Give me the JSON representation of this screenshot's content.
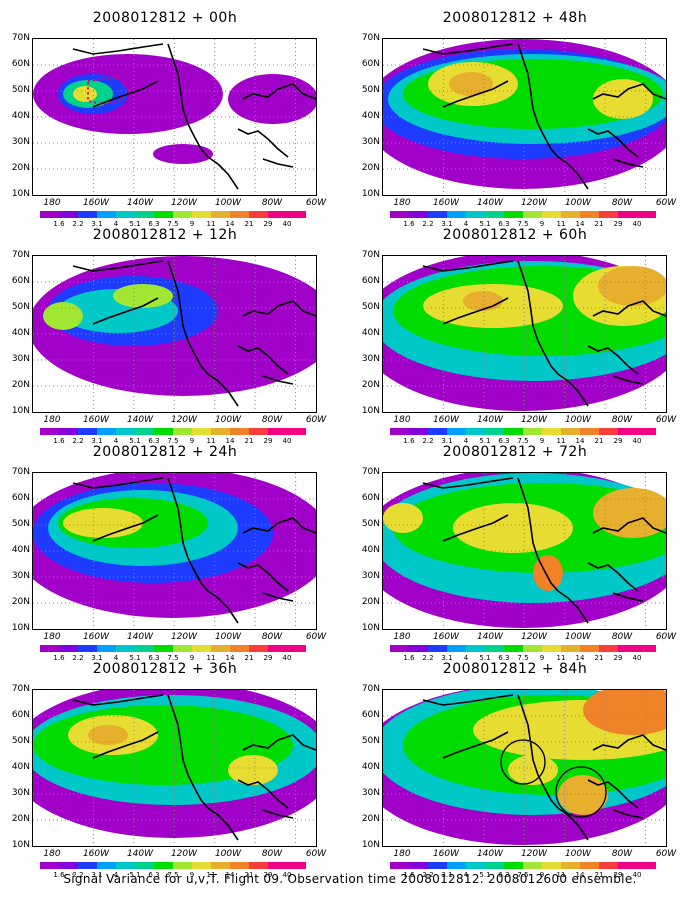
{
  "caption": "Signal Variance for u,v,T. Flight 09. Observation time 2008012812. 2008012600 ensemble.",
  "lat_labels": [
    "70N",
    "60N",
    "50N",
    "40N",
    "30N",
    "20N",
    "10N"
  ],
  "lon_labels": [
    "180",
    "160W",
    "140W",
    "120W",
    "100W",
    "80W",
    "60W"
  ],
  "colorbar": {
    "levels": [
      "1.6",
      "2.2",
      "3.1",
      "4",
      "5.1",
      "6.3",
      "7.5",
      "9",
      "11",
      "14",
      "21",
      "29",
      "40"
    ],
    "colors": [
      "#a000c8",
      "#8200dc",
      "#1e3cff",
      "#00a0ff",
      "#00c8c8",
      "#00d28c",
      "#00dc00",
      "#a0e632",
      "#e6dc32",
      "#e6af2d",
      "#f08228",
      "#fa3c3c",
      "#f00082"
    ]
  },
  "panels": [
    {
      "title": "2008012812 + 00h",
      "lead_hours": 0
    },
    {
      "title": "2008012812 + 48h",
      "lead_hours": 48
    },
    {
      "title": "2008012812 + 12h",
      "lead_hours": 12
    },
    {
      "title": "2008012812 + 60h",
      "lead_hours": 60
    },
    {
      "title": "2008012812 + 24h",
      "lead_hours": 24
    },
    {
      "title": "2008012812 + 72h",
      "lead_hours": 72
    },
    {
      "title": "2008012812 + 36h",
      "lead_hours": 36
    },
    {
      "title": "2008012812 + 84h",
      "lead_hours": 84
    }
  ]
}
